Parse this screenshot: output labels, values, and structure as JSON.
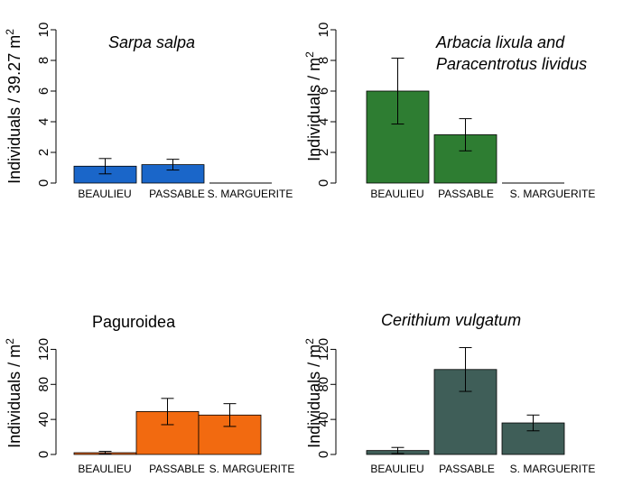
{
  "chart_data": [
    {
      "type": "bar",
      "title_lines": [
        "Sarpa salpa"
      ],
      "title_italic": true,
      "ylabel": "Individuals / 39.27 m",
      "ylabel_sup": "2",
      "categories": [
        "BEAULIEU",
        "PASSABLE",
        "S. MARGUERITE"
      ],
      "values": [
        1.1,
        1.2,
        0
      ],
      "errors": [
        0.5,
        0.35,
        0
      ],
      "ylim": [
        0,
        10
      ],
      "yticks": [
        0,
        2,
        4,
        6,
        8,
        10
      ],
      "ytick_labels": [
        "0",
        "2",
        "4",
        "6",
        "8",
        "10"
      ],
      "color": "#1a66c9"
    },
    {
      "type": "bar",
      "title_lines": [
        "Arbacia lixula and",
        "Paracentrotus lividus"
      ],
      "title_italic": true,
      "ylabel": "Individuals / m",
      "ylabel_sup": "2",
      "categories": [
        "BEAULIEU",
        "PASSABLE",
        "S. MARGUERITE"
      ],
      "values": [
        6.0,
        3.15,
        0
      ],
      "errors": [
        2.15,
        1.05,
        0
      ],
      "ylim": [
        0,
        10
      ],
      "yticks": [
        0,
        2,
        4,
        6,
        8,
        10
      ],
      "ytick_labels": [
        "0",
        "2",
        "4",
        "6",
        "8",
        "10"
      ],
      "color": "#2e7d32"
    },
    {
      "type": "bar",
      "title_lines": [
        "Paguroidea"
      ],
      "title_italic": false,
      "ylabel": "Individuals / m",
      "ylabel_sup": "2",
      "categories": [
        "BEAULIEU",
        "PASSABLE",
        "S. MARGUERITE"
      ],
      "values": [
        2,
        49,
        45
      ],
      "errors": [
        1.5,
        15,
        13
      ],
      "ylim": [
        0,
        140
      ],
      "yticks": [
        0,
        40,
        80,
        120
      ],
      "ytick_labels": [
        "0",
        "40",
        "80",
        "120"
      ],
      "color": "#f26a10"
    },
    {
      "type": "bar",
      "title_lines": [
        "Cerithium vulgatum"
      ],
      "title_italic": true,
      "ylabel": "Individuals / m",
      "ylabel_sup": "2",
      "categories": [
        "BEAULIEU",
        "PASSABLE",
        "S. MARGUERITE"
      ],
      "values": [
        4.5,
        97,
        36
      ],
      "errors": [
        3.5,
        25,
        9
      ],
      "ylim": [
        0,
        140
      ],
      "yticks": [
        0,
        40,
        80,
        120
      ],
      "ytick_labels": [
        "0",
        "40",
        "80",
        "120"
      ],
      "color": "#3f5e58"
    }
  ]
}
